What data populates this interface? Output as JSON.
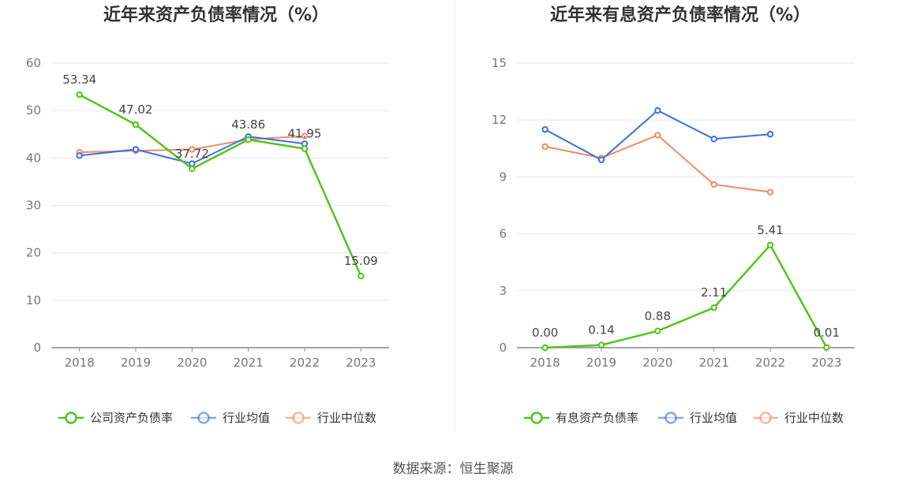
{
  "source": "数据来源：恒生聚源",
  "colors": {
    "company": "#52c41a",
    "avg": "#3b6fe0",
    "median": "#f28a65",
    "grid": "#e6e8f5",
    "axis": "#888888"
  },
  "chart_data": [
    {
      "type": "line",
      "title": "近年来资产负债率情况（%）",
      "categories": [
        "2018",
        "2019",
        "2020",
        "2021",
        "2022",
        "2023"
      ],
      "ylim": [
        0,
        60
      ],
      "yticks": [
        0,
        10,
        20,
        30,
        40,
        50,
        60
      ],
      "grid": true,
      "legend_position": "bottom",
      "series": [
        {
          "key": "company",
          "name": "公司资产负债率",
          "values": [
            53.34,
            47.02,
            37.72,
            43.86,
            41.95,
            15.09
          ],
          "labels": [
            "53.34",
            "47.02",
            "37.72",
            "43.86",
            "41.95",
            "15.09"
          ]
        },
        {
          "key": "avg",
          "name": "行业均值",
          "values": [
            40.5,
            41.8,
            38.8,
            44.5,
            43.0,
            null
          ]
        },
        {
          "key": "median",
          "name": "行业中位数",
          "values": [
            41.2,
            41.5,
            41.8,
            43.9,
            44.6,
            null
          ]
        }
      ]
    },
    {
      "type": "line",
      "title": "近年来有息资产负债率情况（%）",
      "categories": [
        "2018",
        "2019",
        "2020",
        "2021",
        "2022",
        "2023"
      ],
      "ylim": [
        0,
        15
      ],
      "yticks": [
        0,
        3,
        6,
        9,
        12,
        15
      ],
      "grid": true,
      "legend_position": "bottom",
      "series": [
        {
          "key": "company",
          "name": "有息资产负债率",
          "values": [
            0.0,
            0.14,
            0.88,
            2.11,
            5.41,
            0.01
          ],
          "labels": [
            "0.00",
            "0.14",
            "0.88",
            "2.11",
            "5.41",
            "0.01"
          ]
        },
        {
          "key": "avg",
          "name": "行业均值",
          "values": [
            11.5,
            9.9,
            12.5,
            11.0,
            11.25,
            null
          ]
        },
        {
          "key": "median",
          "name": "行业中位数",
          "values": [
            10.6,
            10.0,
            11.2,
            8.6,
            8.2,
            null
          ]
        }
      ]
    }
  ]
}
